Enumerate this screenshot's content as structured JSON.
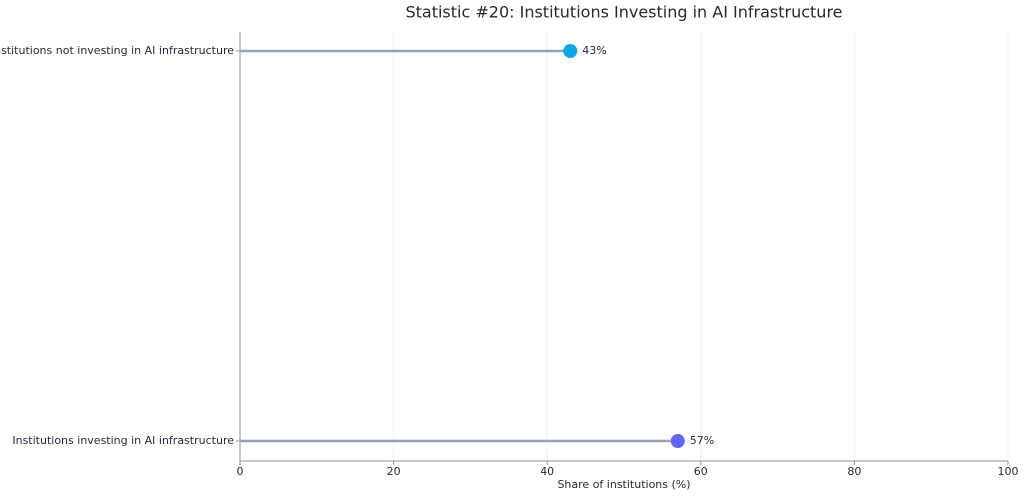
{
  "chart_data": {
    "type": "lollipop",
    "title": "Statistic #20: Institutions Investing in AI Infrastructure",
    "x_label": "Share of institutions (%)",
    "categories": [
      "Institutions investing in AI infrastructure",
      "Institutions not investing in AI infrastructure"
    ],
    "values": [
      57,
      43
    ],
    "value_labels": [
      "57%",
      "43%"
    ],
    "colors": [
      "#6366f1",
      "#0ea5e9"
    ],
    "stem_color": "#94a3b8",
    "xlim": [
      0,
      100
    ],
    "xticks": [
      0,
      20,
      40,
      60,
      80,
      100
    ],
    "grid": true
  }
}
